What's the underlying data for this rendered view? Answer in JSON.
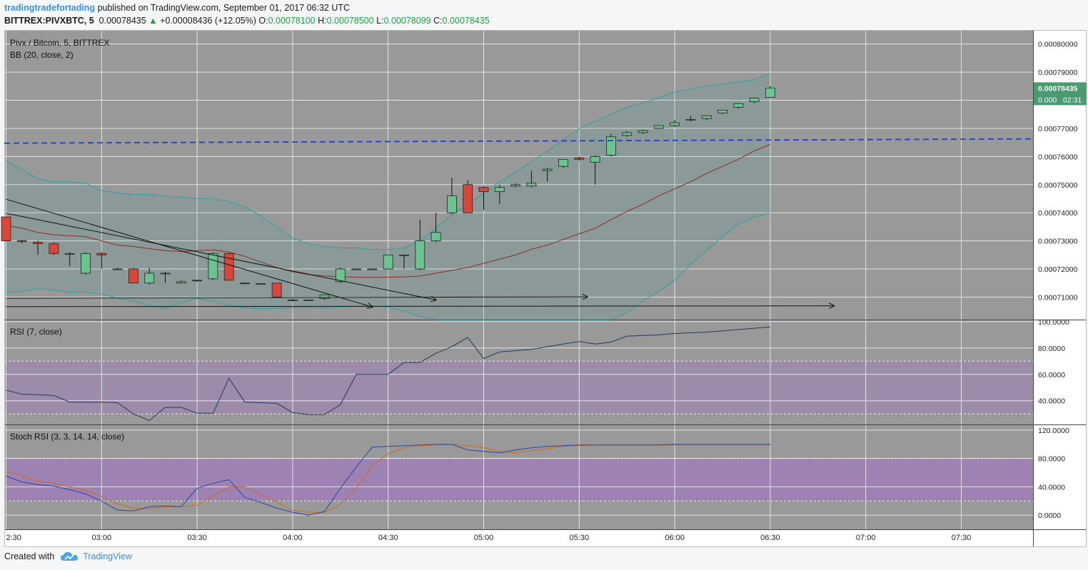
{
  "header": {
    "user": "tradingtradefortading",
    "published": "published on TradingView.com, September 01, 2017 06:32 UTC",
    "symbol": "BITTREX:PIVXBTC, 5",
    "last": "0.00078435",
    "change_arrow": "▲",
    "change": "+0.00008436 (+12.05%)",
    "o_label": "O:",
    "o": "0.00078100",
    "h_label": "H:",
    "h": "0.00078500",
    "l_label": "L:",
    "l": "0.00078099",
    "c_label": "C:",
    "c": "0.00078435"
  },
  "footer": {
    "created_with": "Created with",
    "brand": "TradingView",
    "logo_icon": "tradingview-cloud-icon"
  },
  "colors": {
    "pane_bg": "#999999",
    "up": "#6cc38f",
    "down": "#d9473a",
    "grid": "#bdbdbd",
    "bb_band": "#2aa3a0",
    "bb_basis": "#8b2b24",
    "level_line": "#1f3fd1",
    "rsi_line": "#1d3a5c",
    "stoch_k": "#2547a8",
    "stoch_d": "#d2691e",
    "osc_band": "#9f7fb6",
    "last_price_bg": "#4a9a72"
  },
  "chart_data": [
    {
      "type": "candlestick",
      "title": "Pivx / Bitcoin, 5, BITTREX",
      "indicator_label": "BB (20, close, 2)",
      "time_ticks": [
        "2:30",
        "03:00",
        "03:30",
        "04:00",
        "04:30",
        "05:00",
        "05:30",
        "06:00",
        "06:30",
        "07:00",
        "07:30"
      ],
      "y_ticks": [
        "0.00071000",
        "0.00072000",
        "0.00073000",
        "0.00074000",
        "0.00075000",
        "0.00076000",
        "0.00077000",
        "0.00078000",
        "0.00079000",
        "0.00080000"
      ],
      "ylim": [
        0.000702,
        0.000805
      ],
      "last_price": "0.00078435",
      "last_price_partial": "0.000",
      "countdown": "02:31",
      "candles": [
        [
          0.0007385,
          0.0007385,
          0.0007298,
          0.00073
        ],
        [
          0.00073,
          0.0007305,
          0.000729,
          0.0007298
        ],
        [
          0.0007295,
          0.00073,
          0.000725,
          0.000729
        ],
        [
          0.000729,
          0.0007295,
          0.000725,
          0.0007255
        ],
        [
          0.0007255,
          0.000726,
          0.000721,
          0.0007255
        ],
        [
          0.0007185,
          0.000726,
          0.000718,
          0.0007255
        ],
        [
          0.0007255,
          0.000726,
          0.00072,
          0.000725
        ],
        [
          0.00072,
          0.0007205,
          0.0007198,
          0.00072
        ],
        [
          0.00072,
          0.0007205,
          0.000715,
          0.000715
        ],
        [
          0.000715,
          0.0007205,
          0.0007145,
          0.0007185
        ],
        [
          0.0007185,
          0.000719,
          0.000715,
          0.0007185
        ],
        [
          0.000715,
          0.000716,
          0.0007148,
          0.0007155
        ],
        [
          0.000716,
          0.0007162,
          0.0007155,
          0.0007158
        ],
        [
          0.0007165,
          0.000726,
          0.000716,
          0.0007255
        ],
        [
          0.0007255,
          0.0007258,
          0.000716,
          0.000716
        ],
        [
          0.000715,
          0.0007152,
          0.0007145,
          0.0007148
        ],
        [
          0.0007148,
          0.000715,
          0.0007148,
          0.0007148
        ],
        [
          0.000715,
          0.000715,
          0.00071,
          0.00071
        ],
        [
          0.000709,
          0.0007095,
          0.0007085,
          0.000709
        ],
        [
          0.000709,
          0.0007092,
          0.0007088,
          0.000709
        ],
        [
          0.0007095,
          0.000711,
          0.000709,
          0.0007108
        ],
        [
          0.0007155,
          0.0007205,
          0.000715,
          0.00072
        ],
        [
          0.00072,
          0.00072,
          0.0007198,
          0.0007199
        ],
        [
          0.00072,
          0.00072,
          0.0007198,
          0.0007199
        ],
        [
          0.00072,
          0.000725,
          0.00072,
          0.000725
        ],
        [
          0.000725,
          0.0007252,
          0.00072,
          0.000725
        ],
        [
          0.00072,
          0.0007375,
          0.0007195,
          0.00073
        ],
        [
          0.00073,
          0.00074,
          0.0007295,
          0.000733
        ],
        [
          0.00074,
          0.0007525,
          0.0007395,
          0.000746
        ],
        [
          0.00075,
          0.0007515,
          0.00074,
          0.00074
        ],
        [
          0.000749,
          0.0007495,
          0.000741,
          0.0007475
        ],
        [
          0.0007475,
          0.00075,
          0.000743,
          0.000749
        ],
        [
          0.0007495,
          0.0007505,
          0.000749,
          0.00075
        ],
        [
          0.0007495,
          0.000755,
          0.000749,
          0.0007505
        ],
        [
          0.000755,
          0.000756,
          0.000751,
          0.0007555
        ],
        [
          0.0007565,
          0.000759,
          0.000756,
          0.000759
        ],
        [
          0.0007595,
          0.00076,
          0.0007585,
          0.000759
        ],
        [
          0.000758,
          0.0007605,
          0.00075,
          0.00076
        ],
        [
          0.0007605,
          0.000768,
          0.00076,
          0.000767
        ],
        [
          0.0007675,
          0.000769,
          0.000767,
          0.0007685
        ],
        [
          0.0007685,
          0.0007695,
          0.000768,
          0.0007692
        ],
        [
          0.00077,
          0.000771,
          0.0007698,
          0.000771
        ],
        [
          0.000771,
          0.000773,
          0.0007705,
          0.000772
        ],
        [
          0.000773,
          0.0007745,
          0.0007725,
          0.0007732
        ],
        [
          0.0007735,
          0.0007745,
          0.000773,
          0.0007745
        ],
        [
          0.0007755,
          0.0007765,
          0.000775,
          0.0007765
        ],
        [
          0.0007775,
          0.000779,
          0.000777,
          0.0007788
        ],
        [
          0.0007795,
          0.000781,
          0.000779,
          0.0007808
        ],
        [
          0.000781,
          0.000785,
          0.0007809,
          0.0007843
        ]
      ],
      "bb_upper": [
        0.0007585,
        0.0007555,
        0.000752,
        0.000751,
        0.000751,
        0.0007505,
        0.000748,
        0.000747,
        0.0007465,
        0.0007465,
        0.000746,
        0.0007455,
        0.000745,
        0.000745,
        0.000744,
        0.000742,
        0.000739,
        0.000735,
        0.000731,
        0.000729,
        0.000728,
        0.0007275,
        0.0007275,
        0.000727,
        0.000727,
        0.0007275,
        0.00073,
        0.0007345,
        0.0007395,
        0.000743,
        0.000747,
        0.000751,
        0.0007545,
        0.000758,
        0.000762,
        0.000766,
        0.00077,
        0.0007725,
        0.000775,
        0.0007775,
        0.000779,
        0.000781,
        0.000783,
        0.000784,
        0.000785,
        0.0007858,
        0.0007865,
        0.0007873,
        0.0007893
      ],
      "bb_basis": [
        0.0007355,
        0.0007345,
        0.000733,
        0.0007322,
        0.0007318,
        0.0007315,
        0.00073,
        0.0007285,
        0.000728,
        0.0007272,
        0.0007265,
        0.0007262,
        0.0007265,
        0.0007268,
        0.000726,
        0.0007245,
        0.0007225,
        0.0007205,
        0.000719,
        0.000718,
        0.0007175,
        0.0007172,
        0.0007171,
        0.000717,
        0.0007171,
        0.0007172,
        0.0007175,
        0.0007185,
        0.0007195,
        0.0007205,
        0.000722,
        0.0007235,
        0.000725,
        0.000727,
        0.0007285,
        0.0007305,
        0.0007325,
        0.0007345,
        0.0007375,
        0.0007405,
        0.000743,
        0.000746,
        0.0007485,
        0.000751,
        0.000754,
        0.0007565,
        0.000759,
        0.000762,
        0.0007643
      ],
      "bb_lower": [
        0.0007115,
        0.000712,
        0.000713,
        0.0007125,
        0.0007115,
        0.0007118,
        0.000711,
        0.0007095,
        0.0007085,
        0.000707,
        0.000706,
        0.000708,
        0.0007095,
        0.0007085,
        0.000707,
        0.0007062,
        0.0007058,
        0.000706,
        0.0007062,
        0.0007063,
        0.000706,
        0.0007065,
        0.0007067,
        0.0007068,
        0.0007065,
        0.000705,
        0.000703,
        0.0007005,
        0.000699,
        0.0006975,
        0.000696,
        0.000695,
        0.0006945,
        0.0006945,
        0.000695,
        0.000696,
        0.0006975,
        0.000699,
        0.000701,
        0.0007045,
        0.0007085,
        0.000712,
        0.000716,
        0.0007215,
        0.0007265,
        0.0007315,
        0.000736,
        0.0007385,
        0.0007398
      ],
      "horizontal_level": 0.0007655,
      "trendlines": [
        [
          [
            0.0,
            0.0007448
          ],
          [
            23.0,
            0.0007065
          ]
        ],
        [
          [
            0.0,
            0.0007398
          ],
          [
            27.0,
            0.000709
          ]
        ],
        [
          [
            0.0,
            0.0007096
          ],
          [
            36.5,
            0.0007101
          ]
        ],
        [
          [
            0.0,
            0.0007066
          ],
          [
            52.0,
            0.0007069
          ]
        ]
      ]
    },
    {
      "type": "line",
      "title": "RSI (7, close)",
      "ylim": [
        22,
        101
      ],
      "y_ticks": [
        "40.0000",
        "60.0000",
        "80.0000",
        "100.0000"
      ],
      "band": [
        30,
        70
      ],
      "series": [
        {
          "values": [
            48,
            45,
            44.5,
            44,
            39,
            39,
            39,
            38.5,
            30,
            25,
            35,
            35,
            30.5,
            30.5,
            57,
            39,
            38.5,
            38,
            31,
            29.5,
            29.5,
            37,
            60,
            60,
            60,
            69,
            69,
            76,
            81,
            88,
            72,
            77,
            78,
            79,
            81,
            83,
            85,
            83,
            84.5,
            89,
            89.5,
            90,
            91,
            91.5,
            92,
            93,
            94,
            95,
            96
          ]
        }
      ]
    },
    {
      "type": "line",
      "title": "Stoch RSI (3, 3, 14, 14, close)",
      "ylim": [
        -20,
        127
      ],
      "y_ticks": [
        "0.0000",
        "40.0000",
        "80.0000",
        "120.0000"
      ],
      "band": [
        20,
        80
      ],
      "series": [
        {
          "values": [
            55,
            47,
            43,
            41,
            36,
            30,
            20,
            7,
            6,
            12,
            13,
            12,
            38,
            45,
            50,
            25,
            18,
            10,
            4,
            0,
            5,
            38,
            68,
            96,
            97,
            98,
            99,
            100,
            100,
            92,
            90,
            88,
            92,
            95,
            97,
            98,
            99,
            99,
            99,
            99,
            99,
            99,
            100,
            100,
            100,
            100,
            100,
            100,
            100
          ]
        },
        {
          "values": [
            62,
            55,
            48,
            45,
            40,
            35,
            26,
            16,
            10,
            9,
            12,
            12,
            14,
            27,
            40,
            40,
            29,
            19,
            7,
            4,
            4,
            15,
            38,
            70,
            87,
            95,
            98,
            99,
            100,
            98,
            95,
            90,
            88,
            91,
            94,
            97,
            98,
            99,
            99,
            99,
            99,
            99,
            99,
            99,
            99,
            99,
            99,
            99,
            99
          ]
        }
      ]
    }
  ]
}
